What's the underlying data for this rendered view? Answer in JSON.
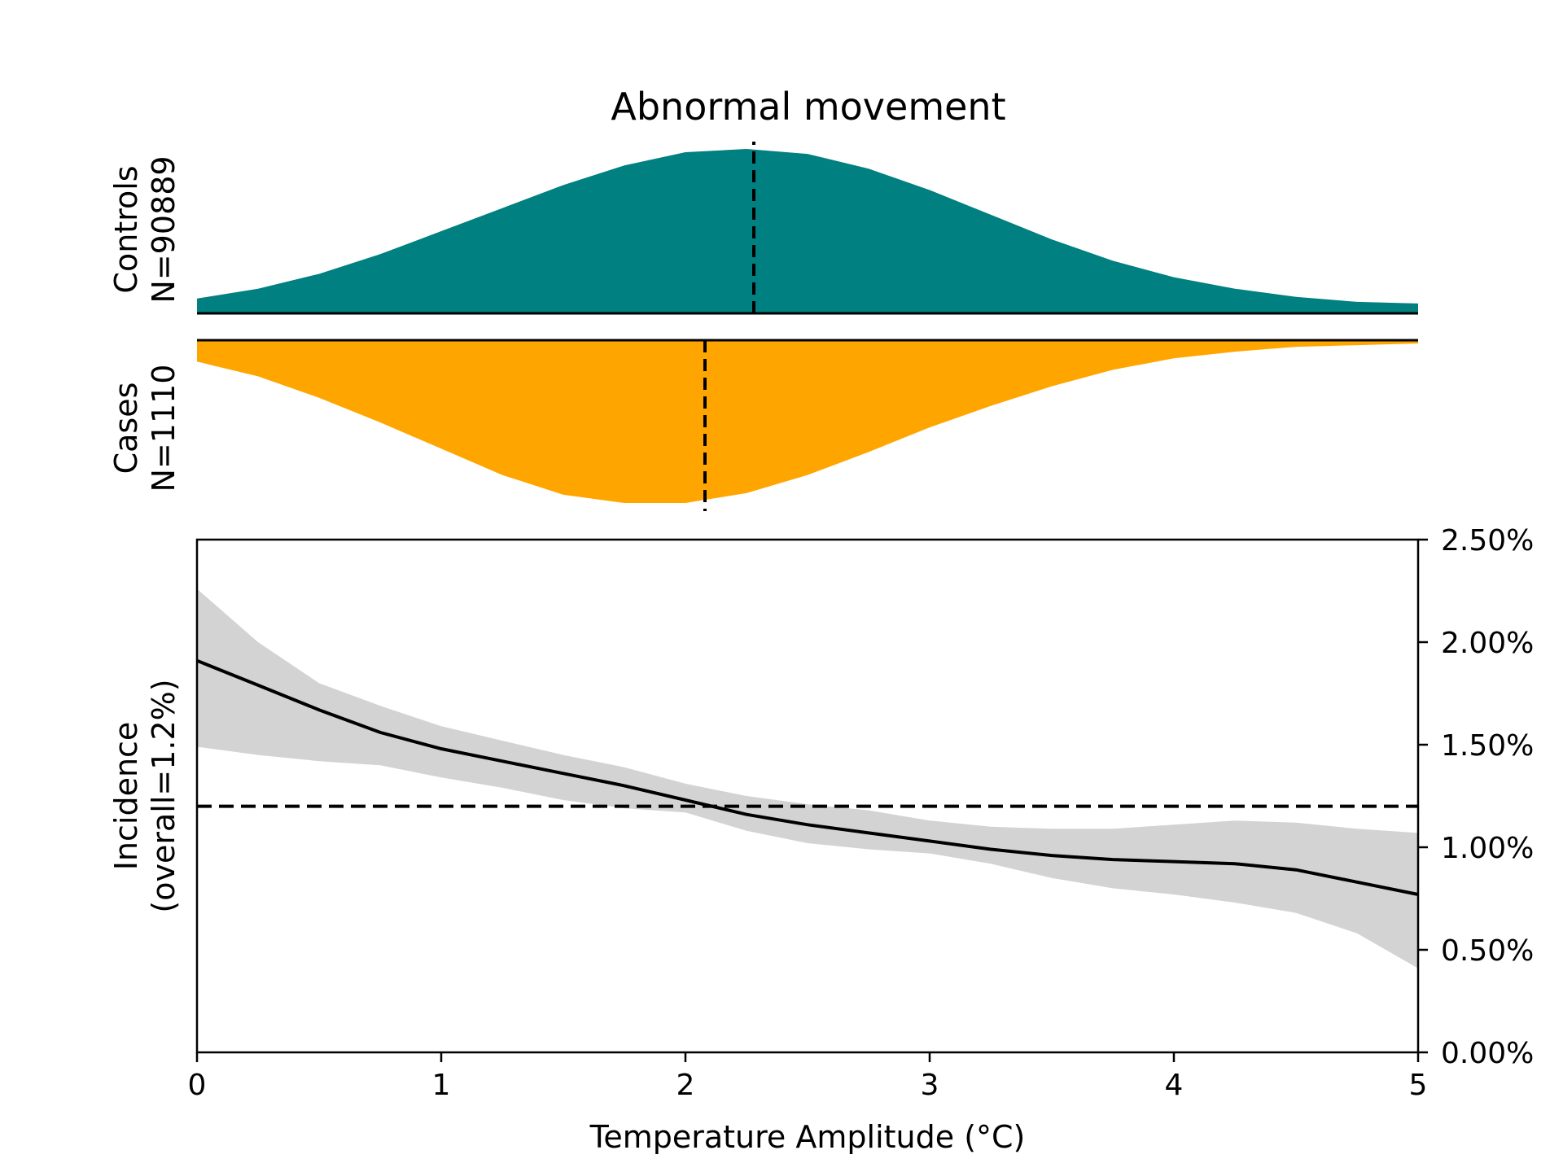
{
  "chart_data": {
    "title": "Abnormal movement",
    "colors": {
      "controls": "#008080",
      "cases": "#FFA500",
      "ci_band": "#d3d3d3",
      "line": "#000000"
    },
    "distribution_panels": [
      {
        "name": "controls",
        "label_line1": "Controls",
        "label_line2": "N=90889",
        "type": "area",
        "orientation": "up",
        "median_x": 2.28,
        "x": [
          0,
          0.25,
          0.5,
          0.75,
          1.0,
          1.25,
          1.5,
          1.75,
          2.0,
          2.25,
          2.5,
          2.75,
          3.0,
          3.25,
          3.5,
          3.75,
          4.0,
          4.25,
          4.5,
          4.75,
          5.0
        ],
        "density": [
          0.09,
          0.15,
          0.24,
          0.36,
          0.5,
          0.64,
          0.78,
          0.9,
          0.98,
          1.0,
          0.97,
          0.88,
          0.75,
          0.6,
          0.45,
          0.32,
          0.22,
          0.15,
          0.1,
          0.07,
          0.06
        ]
      },
      {
        "name": "cases",
        "label_line1": "Cases",
        "label_line2": "N=1110",
        "type": "area",
        "orientation": "down",
        "median_x": 2.08,
        "x": [
          0,
          0.25,
          0.5,
          0.75,
          1.0,
          1.25,
          1.5,
          1.75,
          2.0,
          2.25,
          2.5,
          2.75,
          3.0,
          3.25,
          3.5,
          3.75,
          4.0,
          4.25,
          4.5,
          4.75,
          5.0
        ],
        "density": [
          0.13,
          0.22,
          0.35,
          0.5,
          0.66,
          0.82,
          0.94,
          0.99,
          0.99,
          0.93,
          0.82,
          0.68,
          0.53,
          0.4,
          0.28,
          0.18,
          0.11,
          0.07,
          0.04,
          0.03,
          0.02
        ]
      }
    ],
    "incidence_panel": {
      "type": "line",
      "xlabel": "Temperature Amplitude (°C)",
      "ylabel_line1": "Incidence",
      "ylabel_line2": "(overall=1.2%)",
      "xlim": [
        0,
        5
      ],
      "ylim": [
        0,
        2.5
      ],
      "xticks": [
        "0",
        "1",
        "2",
        "3",
        "4",
        "5"
      ],
      "yticks": [
        "0.00%",
        "0.50%",
        "1.00%",
        "1.50%",
        "2.00%",
        "2.50%"
      ],
      "y_axis_side": "right",
      "overall_rate": 1.2,
      "x": [
        0,
        0.25,
        0.5,
        0.75,
        1.0,
        1.25,
        1.5,
        1.75,
        2.0,
        2.25,
        2.5,
        2.75,
        3.0,
        3.25,
        3.5,
        3.75,
        4.0,
        4.25,
        4.5,
        4.75,
        5.0
      ],
      "series": [
        {
          "values": [
            1.91,
            1.79,
            1.67,
            1.56,
            1.48,
            1.42,
            1.36,
            1.3,
            1.23,
            1.16,
            1.11,
            1.07,
            1.03,
            0.99,
            0.96,
            0.94,
            0.93,
            0.92,
            0.89,
            0.83,
            0.77
          ]
        }
      ],
      "ci_upper": [
        2.26,
        2.0,
        1.8,
        1.69,
        1.59,
        1.52,
        1.45,
        1.39,
        1.31,
        1.25,
        1.21,
        1.18,
        1.13,
        1.1,
        1.09,
        1.09,
        1.11,
        1.13,
        1.12,
        1.09,
        1.07
      ],
      "ci_lower": [
        1.49,
        1.45,
        1.42,
        1.4,
        1.34,
        1.29,
        1.23,
        1.19,
        1.17,
        1.08,
        1.02,
        0.99,
        0.97,
        0.92,
        0.85,
        0.8,
        0.77,
        0.73,
        0.68,
        0.58,
        0.41
      ]
    }
  }
}
